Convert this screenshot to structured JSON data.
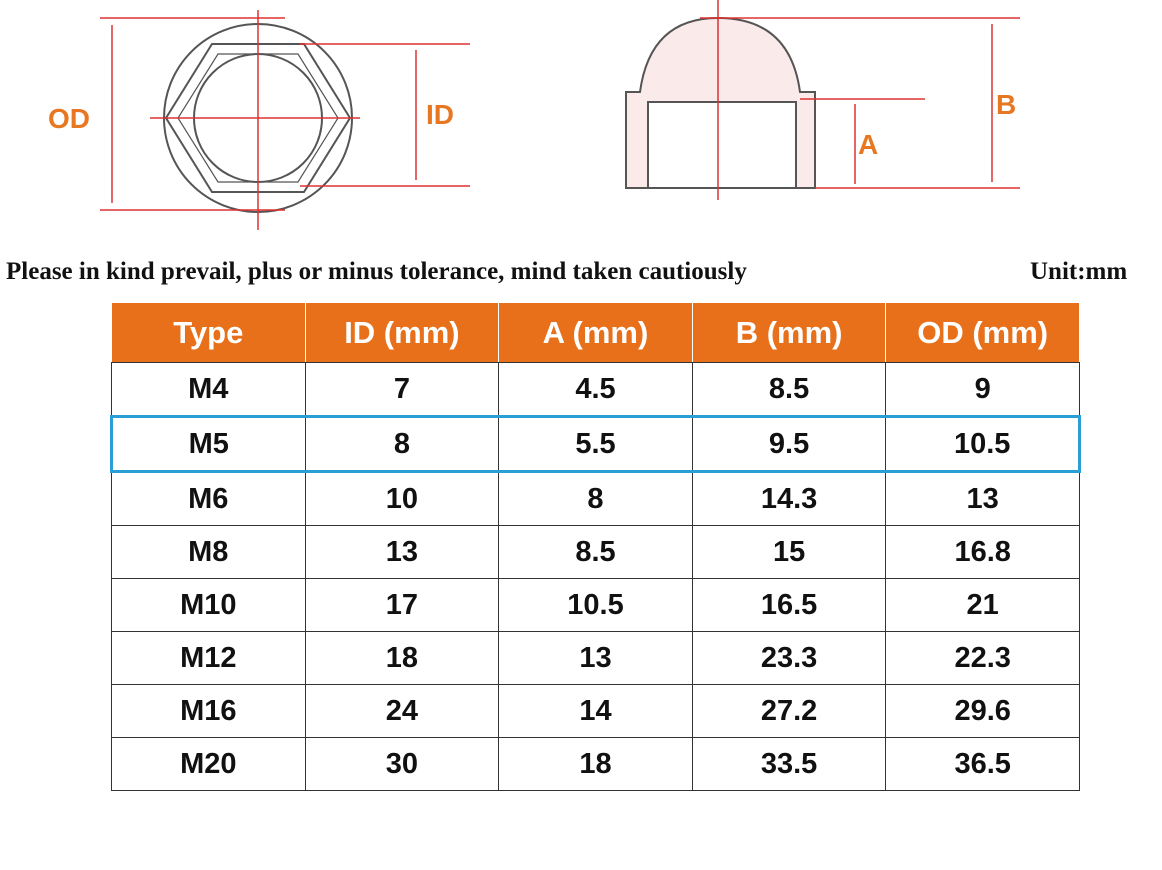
{
  "diagram": {
    "top_view": {
      "od_label": "OD",
      "id_label": "ID"
    },
    "side_view": {
      "a_label": "A",
      "b_label": "B"
    }
  },
  "note": "Please in kind prevail, plus or minus tolerance, mind taken cautiously",
  "unit": "Unit:mm",
  "table": {
    "headers": [
      "Type",
      "ID (mm)",
      "A (mm)",
      "B (mm)",
      "OD (mm)"
    ],
    "rows": [
      [
        "M4",
        "7",
        "4.5",
        "8.5",
        "9"
      ],
      [
        "M5",
        "8",
        "5.5",
        "9.5",
        "10.5"
      ],
      [
        "M6",
        "10",
        "8",
        "14.3",
        "13"
      ],
      [
        "M8",
        "13",
        "8.5",
        "15",
        "16.8"
      ],
      [
        "M10",
        "17",
        "10.5",
        "16.5",
        "21"
      ],
      [
        "M12",
        "18",
        "13",
        "23.3",
        "22.3"
      ],
      [
        "M16",
        "24",
        "14",
        "27.2",
        "29.6"
      ],
      [
        "M20",
        "30",
        "18",
        "33.5",
        "36.5"
      ]
    ]
  }
}
